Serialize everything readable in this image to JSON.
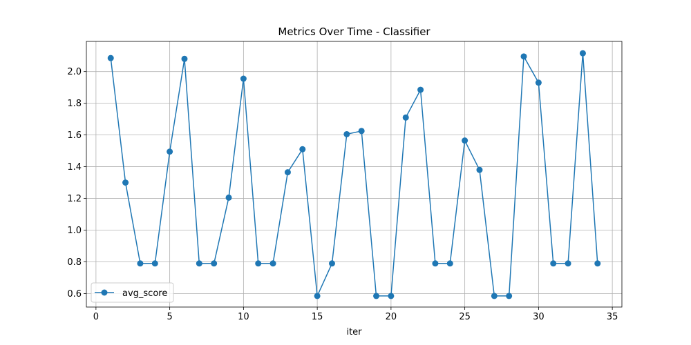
{
  "chart_data": {
    "type": "line",
    "title": "Metrics Over Time - Classifier",
    "xlabel": "iter",
    "ylabel": "",
    "xlim": [
      -0.65,
      35.65
    ],
    "ylim": [
      0.515,
      2.19
    ],
    "xticks": [
      0,
      5,
      10,
      15,
      20,
      25,
      30,
      35
    ],
    "yticks": [
      0.6,
      0.8,
      1.0,
      1.2,
      1.4,
      1.6,
      1.8,
      2.0
    ],
    "grid": true,
    "legend_position": "lower-left",
    "x": [
      1,
      2,
      3,
      4,
      5,
      6,
      7,
      8,
      9,
      10,
      11,
      12,
      13,
      14,
      15,
      16,
      17,
      18,
      19,
      20,
      21,
      22,
      23,
      24,
      25,
      26,
      27,
      28,
      29,
      30,
      31,
      32,
      33,
      34
    ],
    "series": [
      {
        "name": "avg_score",
        "color": "#1f77b4",
        "marker": "circle",
        "values": [
          2.085,
          1.3,
          0.79,
          0.79,
          1.495,
          2.08,
          0.79,
          0.79,
          1.205,
          1.955,
          0.79,
          0.79,
          1.365,
          1.51,
          0.585,
          0.79,
          1.605,
          1.625,
          0.585,
          0.585,
          1.71,
          1.885,
          0.79,
          0.79,
          1.565,
          1.38,
          0.585,
          0.585,
          2.095,
          1.93,
          0.79,
          0.79,
          2.115,
          0.79
        ]
      }
    ]
  }
}
